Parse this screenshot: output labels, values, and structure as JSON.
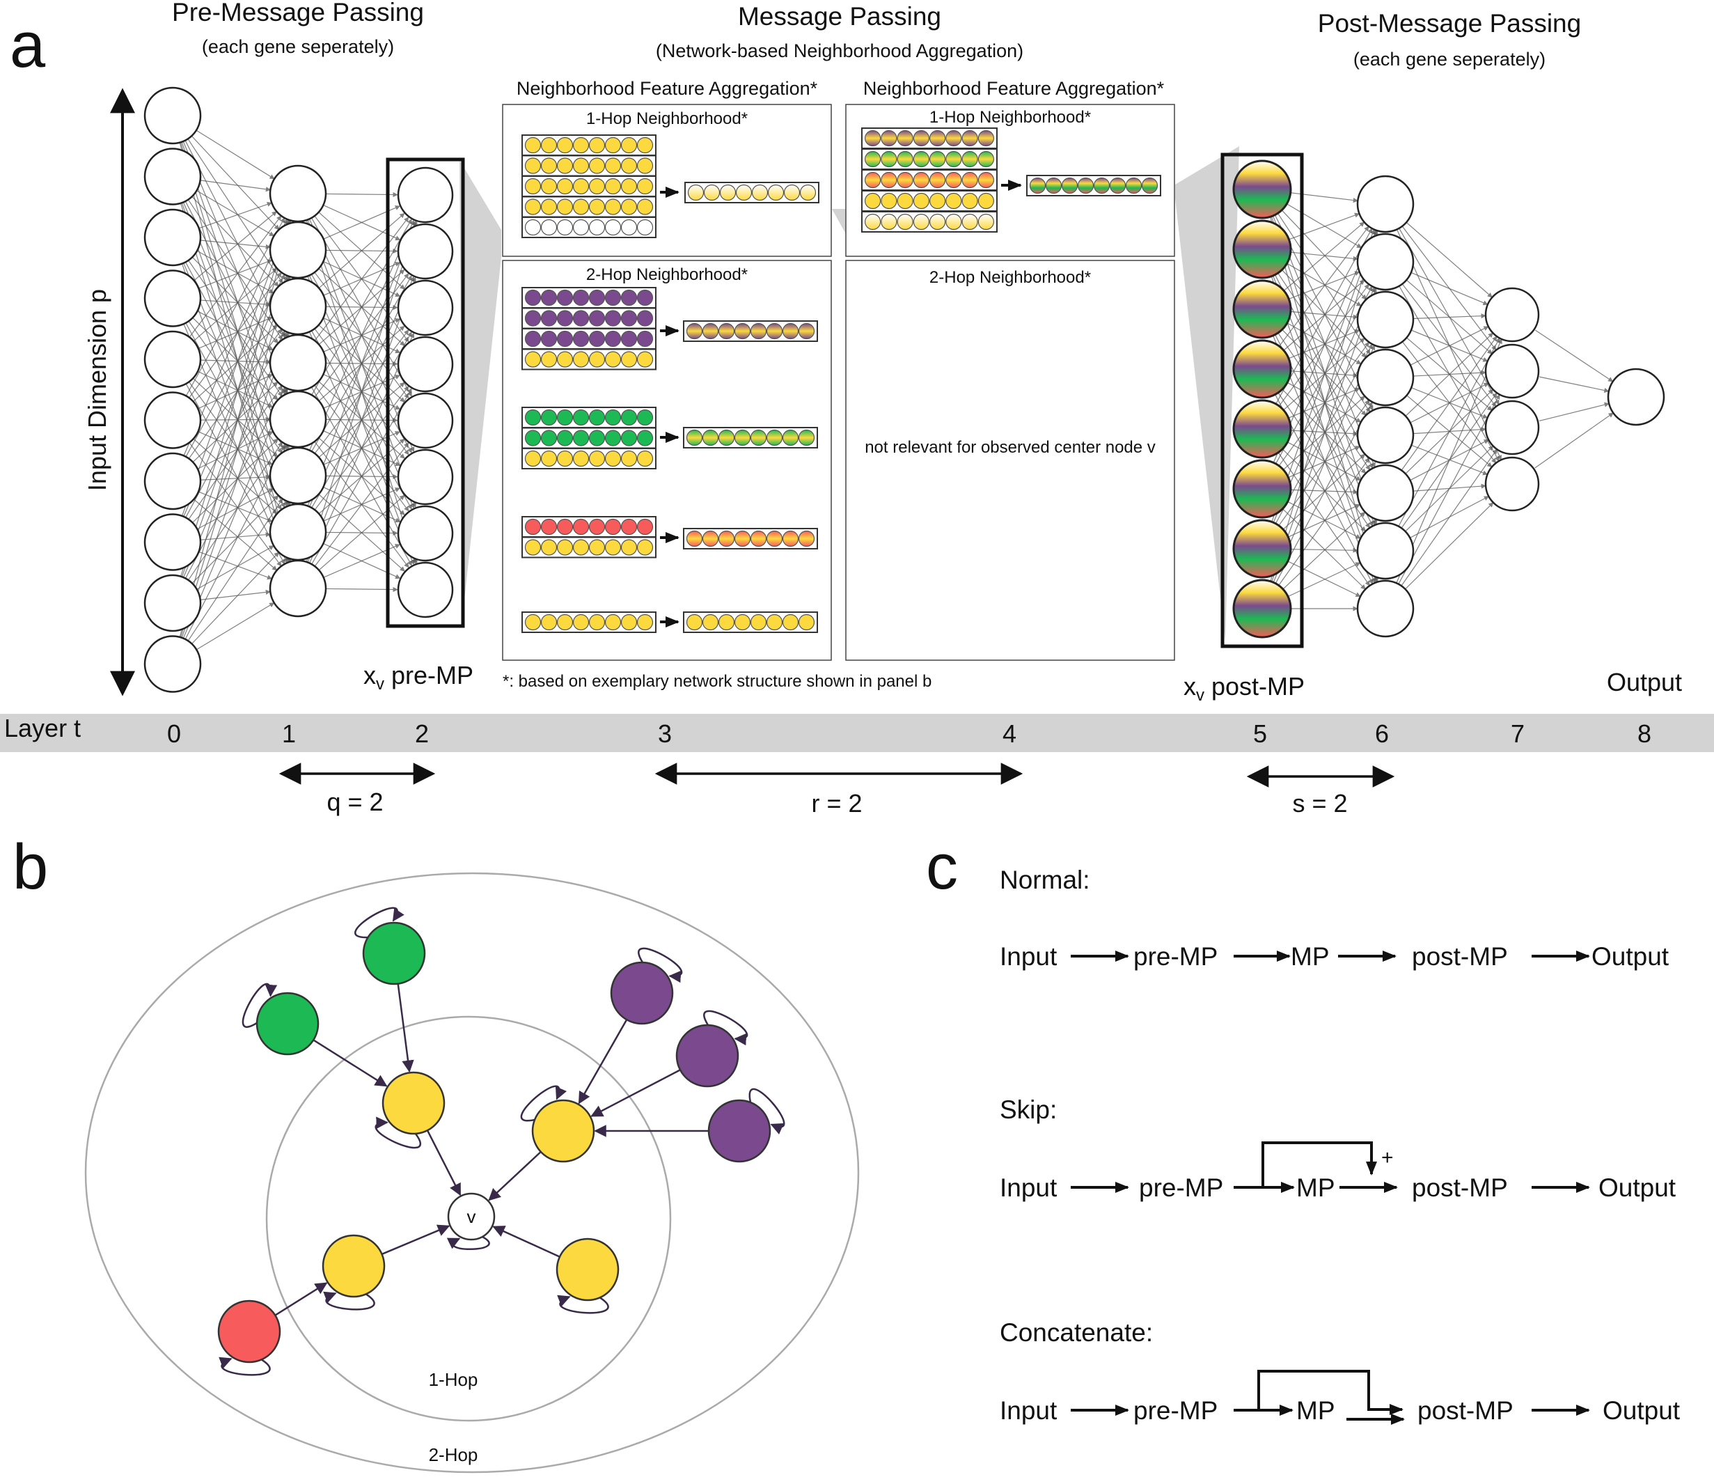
{
  "panel_a": {
    "label": "a",
    "pre_title": "Pre-Message Passing",
    "pre_subtitle": "(each gene seperately)",
    "mp_title": "Message Passing",
    "mp_subtitle": "(Network-based Neighborhood Aggregation)",
    "post_title": "Post-Message Passing",
    "post_subtitle": "(each gene seperately)",
    "input_dim_label": "Input Dimension p",
    "nfa_label": "Neighborhood Feature Aggregation*",
    "one_hop": "1-Hop Neighborhood*",
    "two_hop": "2-Hop Neighborhood*",
    "not_relevant": "not relevant for observed center node v",
    "footnote": "*: based on exemplary network structure shown in panel b",
    "xv_pre": "x",
    "xv_pre_sub": "v",
    "xv_pre_suffix": " pre-MP",
    "xv_post": "x",
    "xv_post_sub": "v",
    "xv_post_suffix": " post-MP",
    "output_label": "Output",
    "layer_label": "Layer t",
    "layers": [
      "0",
      "1",
      "2",
      "3",
      "4",
      "5",
      "6",
      "7",
      "8"
    ],
    "q_label": "q = 2",
    "r_label": "r = 2",
    "s_label": "s = 2"
  },
  "panel_b": {
    "label": "b",
    "center_node": "v",
    "ring_inner": "1-Hop",
    "ring_outer": "2-Hop"
  },
  "panel_c": {
    "label": "c",
    "normal": {
      "title": "Normal:",
      "steps": [
        "Input",
        "pre-MP",
        "MP",
        "post-MP",
        "Output"
      ]
    },
    "skip": {
      "title": "Skip:",
      "steps": [
        "Input",
        "pre-MP",
        "MP",
        "post-MP",
        "Output"
      ],
      "plus": "+"
    },
    "concat": {
      "title": "Concatenate:",
      "steps": [
        "Input",
        "pre-MP",
        "MP",
        "post-MP",
        "Output"
      ]
    }
  },
  "colors": {
    "yellow": "#fcd93f",
    "purple": "#7b4a8e",
    "green": "#1db954",
    "red": "#f75b5b",
    "white": "#ffffff",
    "gray_band": "#d3d3d3"
  }
}
